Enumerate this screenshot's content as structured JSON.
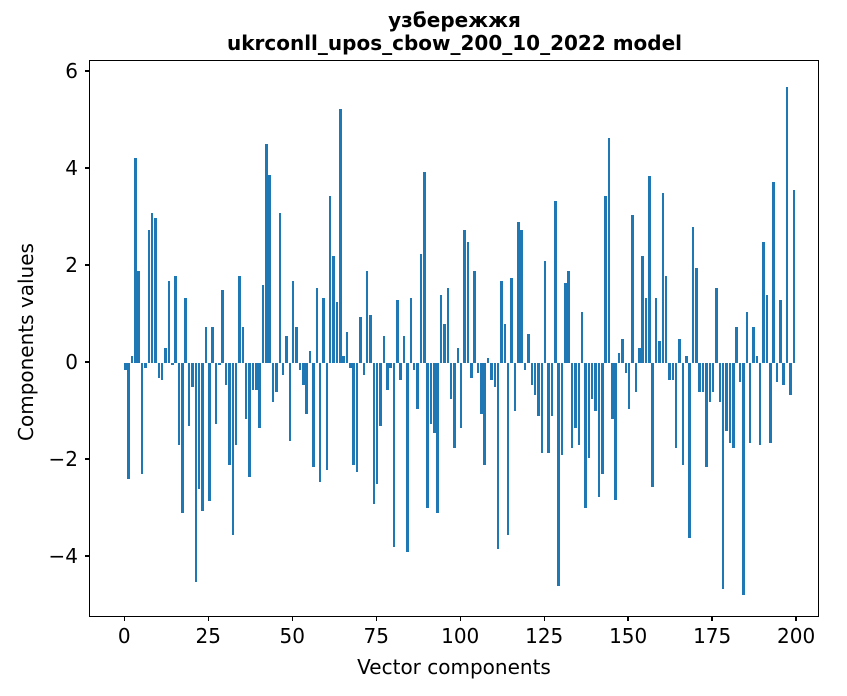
{
  "figure": {
    "background": "#ffffff",
    "spine_color": "#000000"
  },
  "chart_data": {
    "type": "bar",
    "title_line1": "узбережжя",
    "title_line2": "ukrconll_upos_cbow_200_10_2022 model",
    "xlabel": "Vector components",
    "ylabel": "Components values",
    "bar_color": "#1f77b4",
    "grid": false,
    "legend": null,
    "n_bars": 200,
    "xlim": [
      -10.5,
      206.8
    ],
    "ylim": [
      -5.26,
      6.23
    ],
    "x_ticks": [
      0,
      25,
      50,
      75,
      100,
      125,
      150,
      175,
      200
    ],
    "x_tick_labels": [
      "0",
      "25",
      "50",
      "75",
      "100",
      "125",
      "150",
      "175",
      "200"
    ],
    "y_ticks": [
      6,
      4,
      2,
      0,
      -2,
      -4
    ],
    "y_tick_labels": [
      "6",
      "4",
      "2",
      "0",
      "−2",
      "−4"
    ],
    "values": [
      -0.15,
      -2.4,
      0.15,
      4.23,
      1.9,
      -2.3,
      -0.1,
      2.75,
      3.1,
      3.0,
      -0.3,
      -0.35,
      0.3,
      1.7,
      -0.05,
      1.8,
      -1.7,
      -3.1,
      1.35,
      -1.3,
      -0.5,
      -4.52,
      -2.6,
      -3.05,
      0.75,
      -2.85,
      0.75,
      -1.25,
      -0.05,
      1.5,
      -0.45,
      -2.1,
      -3.55,
      -1.7,
      1.8,
      0.75,
      -1.15,
      -2.35,
      -0.55,
      -0.55,
      -1.35,
      1.6,
      4.52,
      3.87,
      -0.8,
      -0.6,
      3.1,
      -0.25,
      0.55,
      -1.6,
      1.7,
      0.75,
      -0.15,
      -0.45,
      -1.05,
      0.25,
      -2.15,
      1.55,
      -2.45,
      1.35,
      -2.2,
      3.45,
      2.2,
      1.25,
      5.25,
      0.15,
      0.65,
      -0.1,
      -2.1,
      -2.25,
      0.95,
      -0.25,
      1.9,
      1.0,
      -2.9,
      -2.5,
      -1.3,
      0.55,
      -0.55,
      -0.1,
      -3.8,
      1.3,
      -0.35,
      0.55,
      -3.89,
      1.35,
      -0.15,
      -0.95,
      2.25,
      3.95,
      -3.0,
      -1.25,
      -1.45,
      -3.1,
      1.4,
      0.8,
      1.55,
      -0.75,
      -1.75,
      0.3,
      -1.35,
      2.75,
      2.5,
      -0.3,
      1.9,
      -0.2,
      -1.05,
      -2.1,
      0.1,
      -0.35,
      -0.5,
      -3.84,
      1.7,
      0.8,
      -3.55,
      1.75,
      -1.0,
      2.9,
      2.75,
      -0.15,
      0.6,
      -0.45,
      -0.65,
      -1.1,
      -1.85,
      2.1,
      -1.85,
      -1.1,
      3.35,
      -4.6,
      -1.9,
      1.65,
      1.9,
      -1.75,
      -1.35,
      -1.7,
      1.05,
      -3.0,
      -1.95,
      -0.75,
      -1.0,
      -2.76,
      -2.3,
      3.45,
      4.65,
      -1.15,
      -2.82,
      0.2,
      0.5,
      -0.2,
      -0.95,
      3.05,
      -0.6,
      0.3,
      2.2,
      1.35,
      3.85,
      -2.55,
      1.35,
      0.45,
      3.5,
      1.8,
      -0.35,
      -0.35,
      -1.75,
      0.5,
      -2.1,
      0.15,
      -3.6,
      2.8,
      1.95,
      -0.6,
      -0.6,
      -2.15,
      -0.8,
      -0.6,
      1.55,
      -0.8,
      -4.67,
      -1.4,
      -1.65,
      -1.75,
      0.75,
      -0.4,
      -4.78,
      1.05,
      -1.65,
      0.75,
      0.15,
      -1.7,
      2.5,
      1.4,
      -1.65,
      3.73,
      -0.4,
      1.3,
      -0.45,
      5.7,
      -0.65,
      3.57
    ]
  }
}
